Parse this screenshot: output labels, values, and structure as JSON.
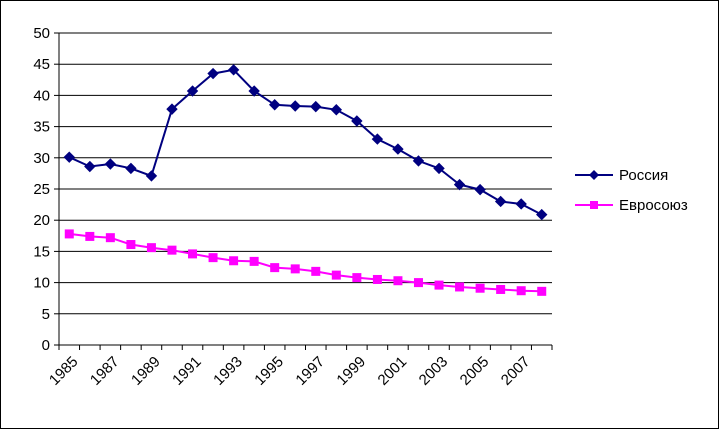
{
  "chart_data": {
    "type": "line",
    "title": "",
    "xlabel": "",
    "ylabel": "",
    "x": [
      1985,
      1986,
      1987,
      1988,
      1989,
      1990,
      1991,
      1992,
      1993,
      1994,
      1995,
      1996,
      1997,
      1998,
      1999,
      2000,
      2001,
      2002,
      2003,
      2004,
      2005,
      2006,
      2007,
      2008
    ],
    "x_tick_labels": [
      "1985",
      "1987",
      "1989",
      "1991",
      "1993",
      "1995",
      "1997",
      "1999",
      "2001",
      "2003",
      "2005",
      "2007"
    ],
    "y_tick_labels": [
      "0",
      "5",
      "10",
      "15",
      "20",
      "25",
      "30",
      "35",
      "40",
      "45",
      "50"
    ],
    "ylim": [
      0,
      50
    ],
    "grid": "horizontal",
    "legend_position": "right",
    "series": [
      {
        "name": "Россия",
        "color": "#000080",
        "marker": "diamond",
        "values": [
          30.1,
          28.6,
          29.0,
          28.3,
          27.1,
          37.8,
          40.7,
          43.5,
          44.1,
          40.7,
          38.5,
          38.3,
          38.2,
          37.7,
          35.9,
          33.0,
          31.4,
          29.5,
          28.3,
          25.7,
          24.9,
          23.0,
          22.6,
          20.9
        ]
      },
      {
        "name": "Евросоюз",
        "color": "#FF00FF",
        "marker": "square",
        "values": [
          17.8,
          17.4,
          17.2,
          16.1,
          15.6,
          15.2,
          14.6,
          14.0,
          13.5,
          13.4,
          12.4,
          12.2,
          11.8,
          11.2,
          10.8,
          10.5,
          10.3,
          10.0,
          9.6,
          9.3,
          9.1,
          8.9,
          8.7,
          8.6
        ]
      }
    ]
  }
}
